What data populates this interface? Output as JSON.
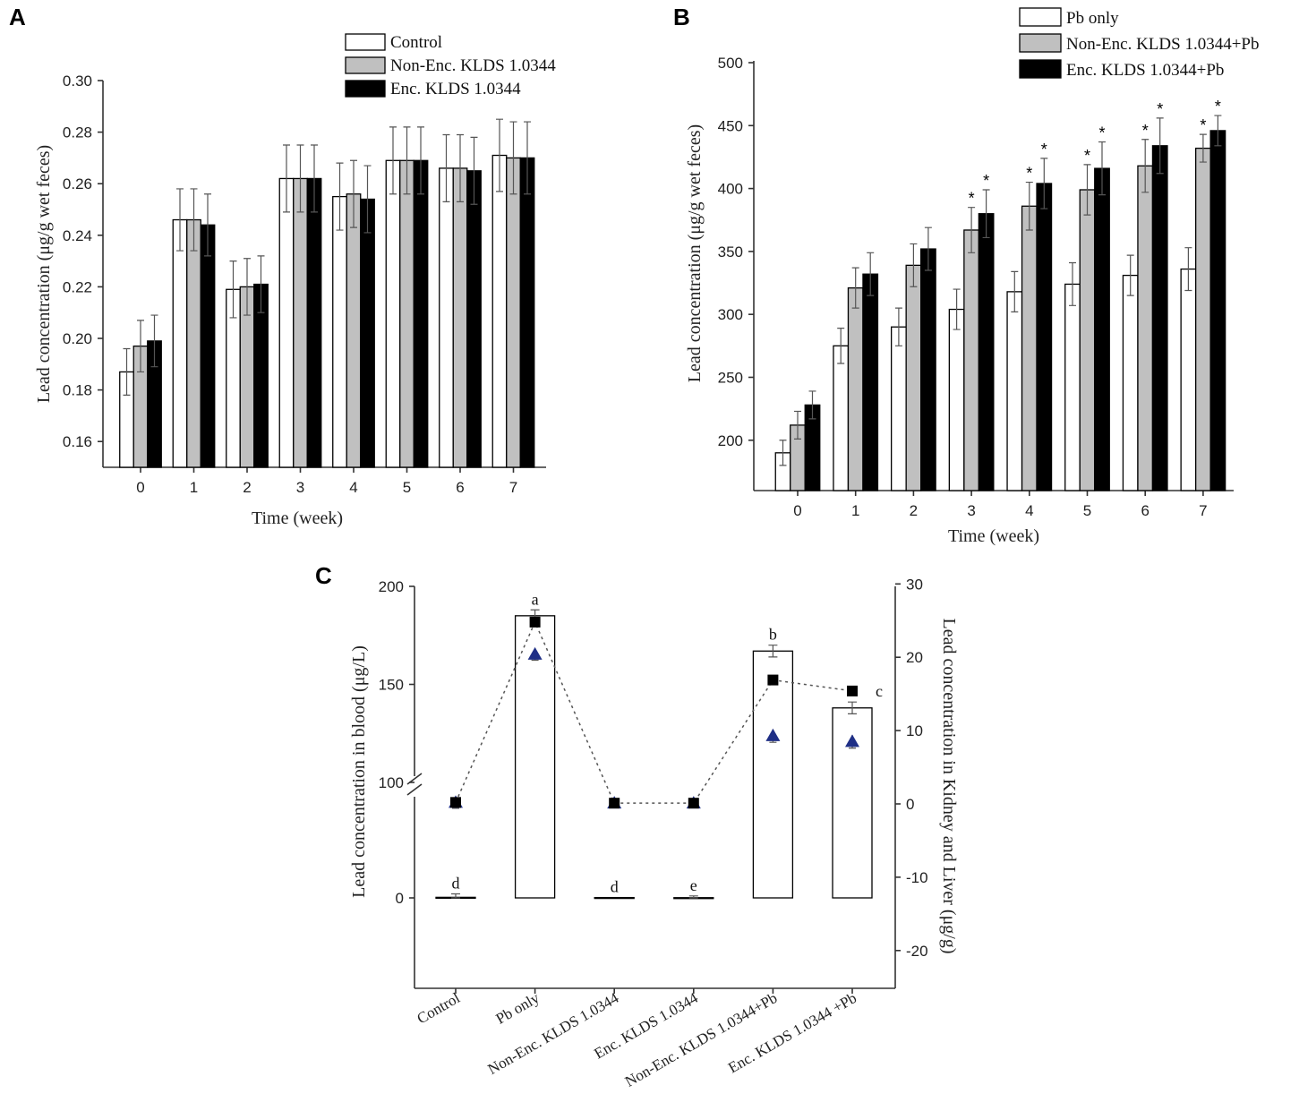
{
  "chart_data": [
    {
      "panel": "A",
      "type": "bar",
      "xlabel": "Time (week)",
      "ylabel": "Lead concentration (μg/g wet feces)",
      "ylim": [
        0.15,
        0.3
      ],
      "yticks": [
        "0.16",
        "0.18",
        "0.20",
        "0.22",
        "0.24",
        "0.26",
        "0.28",
        "0.30"
      ],
      "categories": [
        "0",
        "1",
        "2",
        "3",
        "4",
        "5",
        "6",
        "7"
      ],
      "legend_position": "top-right",
      "series": [
        {
          "name": "Control",
          "color": "#ffffff",
          "values": [
            0.187,
            0.246,
            0.219,
            0.262,
            0.255,
            0.269,
            0.266,
            0.271
          ],
          "errors": [
            0.009,
            0.012,
            0.011,
            0.013,
            0.013,
            0.013,
            0.013,
            0.014
          ]
        },
        {
          "name": "Non-Enc. KLDS 1.0344",
          "color": "#c0c0c0",
          "values": [
            0.197,
            0.246,
            0.22,
            0.262,
            0.256,
            0.269,
            0.266,
            0.27
          ],
          "errors": [
            0.01,
            0.012,
            0.011,
            0.013,
            0.013,
            0.013,
            0.013,
            0.014
          ]
        },
        {
          "name": "Enc. KLDS 1.0344",
          "color": "#000000",
          "values": [
            0.199,
            0.244,
            0.221,
            0.262,
            0.254,
            0.269,
            0.265,
            0.27
          ],
          "errors": [
            0.01,
            0.012,
            0.011,
            0.013,
            0.013,
            0.013,
            0.013,
            0.014
          ]
        }
      ]
    },
    {
      "panel": "B",
      "type": "bar",
      "xlabel": "Time (week)",
      "ylabel": "Lead concentration (μg/g wet feces)",
      "ylim": [
        160,
        500
      ],
      "yticks": [
        "200",
        "250",
        "300",
        "350",
        "400",
        "450",
        "500"
      ],
      "categories": [
        "0",
        "1",
        "2",
        "3",
        "4",
        "5",
        "6",
        "7"
      ],
      "legend_position": "top-right",
      "significance_marker": "*",
      "series": [
        {
          "name": "Pb only",
          "color": "#ffffff",
          "values": [
            190,
            275,
            290,
            304,
            318,
            324,
            331,
            336
          ],
          "errors": [
            10,
            14,
            15,
            16,
            16,
            17,
            16,
            17
          ],
          "significant": [
            false,
            false,
            false,
            false,
            false,
            false,
            false,
            false
          ]
        },
        {
          "name": "Non-Enc. KLDS 1.0344+Pb",
          "color": "#c0c0c0",
          "values": [
            212,
            321,
            339,
            367,
            386,
            399,
            418,
            432
          ],
          "errors": [
            11,
            16,
            17,
            18,
            19,
            20,
            21,
            11
          ],
          "significant": [
            false,
            false,
            false,
            true,
            true,
            true,
            true,
            true
          ]
        },
        {
          "name": "Enc. KLDS 1.0344+Pb",
          "color": "#000000",
          "values": [
            228,
            332,
            352,
            380,
            404,
            416,
            434,
            446
          ],
          "errors": [
            11,
            17,
            17,
            19,
            20,
            21,
            22,
            12
          ],
          "significant": [
            false,
            false,
            false,
            true,
            true,
            true,
            true,
            true
          ]
        }
      ]
    },
    {
      "panel": "C",
      "type": "bar",
      "ylabel_left": "Lead concentration in blood (μg/L)",
      "ylabel_right": "Lead concentration in Kidney and Liver (μg/g)",
      "yticks_left": [
        "0",
        "100",
        "150",
        "200"
      ],
      "yticks_right": [
        "-20",
        "-10",
        "0",
        "10",
        "20",
        "30"
      ],
      "ylim_right": [
        -25,
        30
      ],
      "axis_break": "between 0 and 100 on left axis",
      "categories": [
        "Control",
        "Pb only",
        "Non-Enc. KLDS 1.0344",
        "Enc. KLDS 1.0344",
        "Non-Enc. KLDS 1.0344+Pb",
        "Enc. KLDS 1.0344 +Pb"
      ],
      "blood": {
        "values": [
          0.5,
          185,
          0.3,
          0.2,
          167,
          138
        ],
        "errors": [
          3,
          3,
          0,
          1.5,
          3,
          3
        ],
        "letters": [
          "d",
          "a",
          "d",
          "e",
          "b",
          "c"
        ]
      },
      "kidney_squares": {
        "values": [
          0.2,
          24.8,
          0.1,
          0.1,
          16.9,
          15.4
        ]
      },
      "liver_triangles": {
        "values": [
          0.2,
          20.4,
          0.1,
          0.1,
          9.3,
          8.5
        ],
        "errors": [
          0.8,
          0.8,
          0.5,
          0.5,
          0.9,
          0.9
        ]
      }
    }
  ],
  "panels": {
    "a": "A",
    "b": "B",
    "c": "C"
  }
}
